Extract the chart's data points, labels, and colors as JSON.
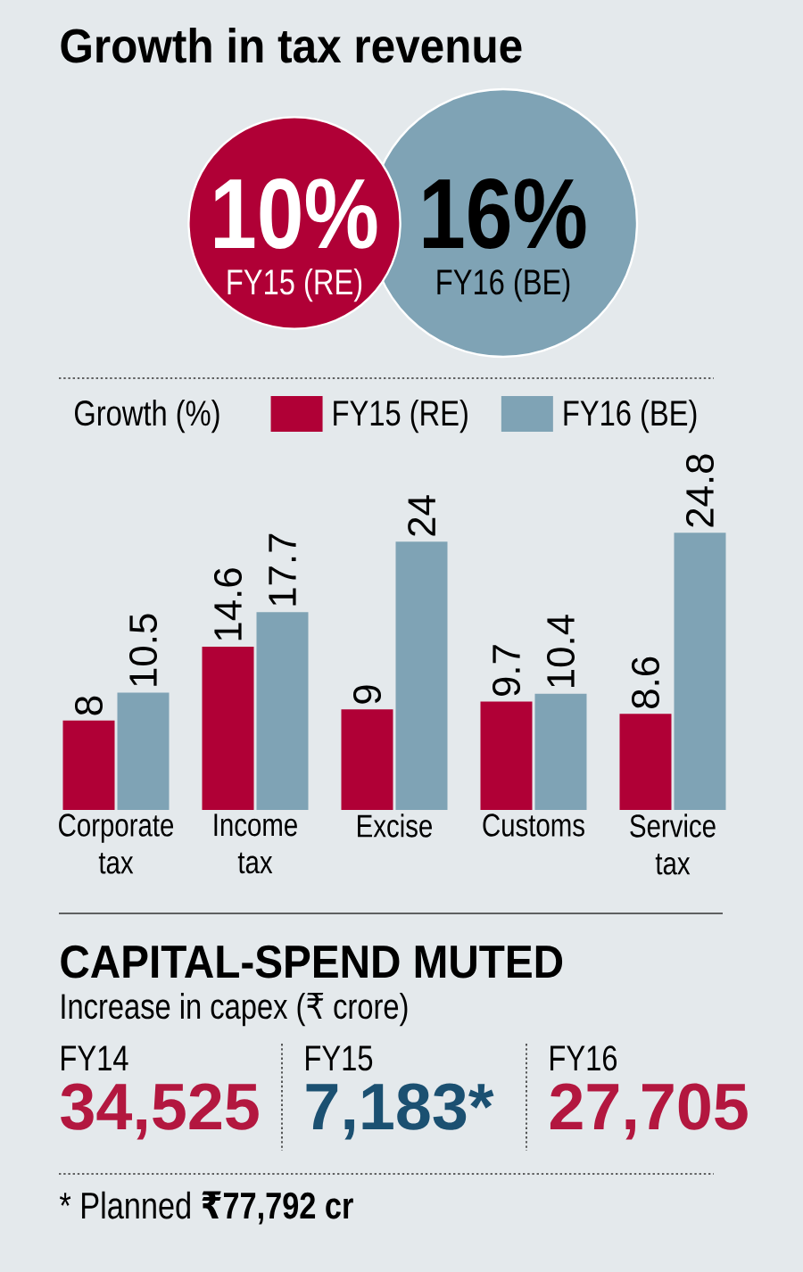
{
  "chart_data": [
    {
      "type": "other",
      "title": "Growth in tax revenue",
      "categories": [
        "FY15 (RE)",
        "FY16 (BE)"
      ],
      "values": [
        10,
        16
      ],
      "value_labels": [
        "10%",
        "16%"
      ],
      "colors": [
        "#b00036",
        "#7fa3b5"
      ]
    },
    {
      "type": "bar",
      "legend_title": "Growth (%)",
      "categories": [
        "Corporate tax",
        "Income tax",
        "Excise",
        "Customs",
        "Service tax"
      ],
      "series": [
        {
          "name": "FY15 (RE)",
          "color": "#b00036",
          "values": [
            8,
            14.6,
            9,
            9.7,
            8.6
          ]
        },
        {
          "name": "FY16 (BE)",
          "color": "#7fa3b5",
          "values": [
            10.5,
            17.7,
            24,
            10.4,
            24.8
          ]
        }
      ],
      "data_labels": true,
      "legend": "top"
    },
    {
      "type": "other",
      "title": "CAPITAL-SPEND MUTED",
      "subtitle": "Increase in capex (₹ crore)",
      "categories": [
        "FY14",
        "FY15",
        "FY16"
      ],
      "value_labels": [
        "34,525",
        "7,183*",
        "27,705"
      ],
      "colors": [
        "#b3173f",
        "#1b5071",
        "#b3173f"
      ],
      "annotations": [
        "* Planned **₹77,792 cr**"
      ]
    }
  ]
}
